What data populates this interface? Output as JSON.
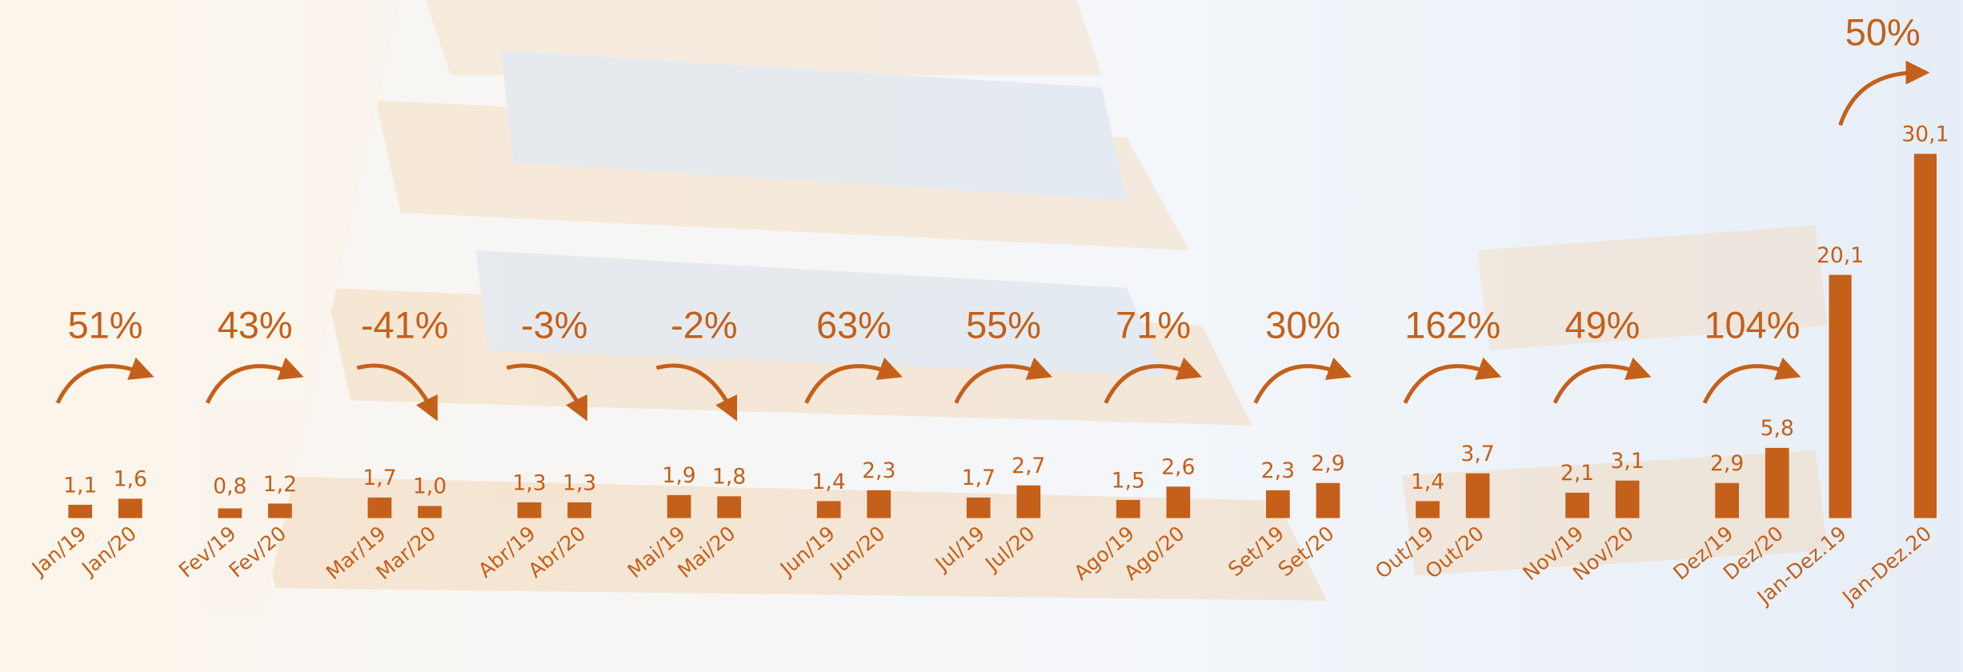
{
  "chart_data": {
    "type": "bar",
    "color": "#c4601a",
    "categories": [
      "Jan/19",
      "Jan/20",
      "Fev/19",
      "Fev/20",
      "Mar/19",
      "Mar/20",
      "Abr/19",
      "Abr/20",
      "Mai/19",
      "Mai/20",
      "Jun/19",
      "Jun/20",
      "Jul/19",
      "Jul/20",
      "Ago/19",
      "Ago/20",
      "Set/19",
      "Set/20",
      "Out/19",
      "Out/20",
      "Nov/19",
      "Nov/20",
      "Dez/19",
      "Dez/20",
      "Jan-Dez.19",
      "Jan-Dez.20"
    ],
    "values": [
      1.1,
      1.6,
      0.8,
      1.2,
      1.7,
      1.0,
      1.3,
      1.3,
      1.9,
      1.8,
      1.4,
      2.3,
      1.7,
      2.7,
      1.5,
      2.6,
      2.3,
      2.9,
      1.4,
      3.7,
      2.1,
      3.1,
      2.9,
      5.8,
      20.1,
      30.1
    ],
    "value_labels": [
      "1,1",
      "1,6",
      "0,8",
      "1,2",
      "1,7",
      "1,0",
      "1,3",
      "1,3",
      "1,9",
      "1,8",
      "1,4",
      "2,3",
      "1,7",
      "2,7",
      "1,5",
      "2,6",
      "2,3",
      "2,9",
      "1,4",
      "3,7",
      "2,1",
      "3,1",
      "2,9",
      "5,8",
      "20,1",
      "30,1"
    ],
    "changes": [
      {
        "value": 51,
        "label": "51%"
      },
      {
        "value": 43,
        "label": "43%"
      },
      {
        "value": -41,
        "label": "-41%"
      },
      {
        "value": -3,
        "label": "-3%"
      },
      {
        "value": -2,
        "label": "-2%"
      },
      {
        "value": 63,
        "label": "63%"
      },
      {
        "value": 55,
        "label": "55%"
      },
      {
        "value": 71,
        "label": "71%"
      },
      {
        "value": 30,
        "label": "30%"
      },
      {
        "value": 162,
        "label": "162%"
      },
      {
        "value": 49,
        "label": "49%"
      },
      {
        "value": 104,
        "label": "104%"
      },
      {
        "value": 50,
        "label": "50%"
      }
    ]
  }
}
